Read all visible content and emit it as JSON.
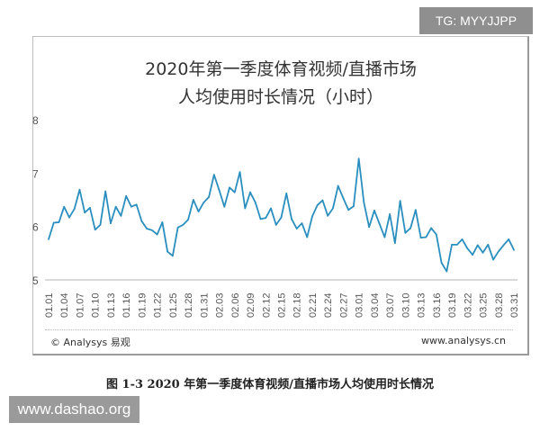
{
  "badge": "TG: MYYJJPP",
  "footer": {
    "left": "© Analysys 易观",
    "right": "www.analysys.cn"
  },
  "caption": "图 1-3 2020 年第一季度体育视频/直播市场人均使用时长情况",
  "watermark_site": "www.dashao.org",
  "colors": {
    "line": "#2a8fbf",
    "axis": "#d9d9d9"
  },
  "chart_data": {
    "type": "line",
    "title_line1": "2020年第一季度体育视频/直播市场",
    "title_line2": "人均使用时长情况（小时）",
    "ylim": [
      5,
      8
    ],
    "yticks": [
      5,
      6,
      7,
      8
    ],
    "grid": false,
    "xtick_labels": [
      "01.01",
      "01.04",
      "01.07",
      "01.10",
      "01.13",
      "01.16",
      "01.19",
      "01.22",
      "01.25",
      "01.28",
      "01.31",
      "02.03",
      "02.06",
      "02.09",
      "02.12",
      "02.15",
      "02.18",
      "02.21",
      "02.24",
      "02.27",
      "03.01",
      "03.04",
      "03.07",
      "03.10",
      "03.13",
      "03.16",
      "03.19",
      "03.22",
      "03.25",
      "03.28",
      "03.31"
    ],
    "x_start": "01.01",
    "x_end": "03.31",
    "values": [
      5.76,
      6.07,
      6.08,
      6.37,
      6.17,
      6.33,
      6.69,
      6.26,
      6.35,
      5.94,
      6.03,
      6.66,
      6.06,
      6.37,
      6.2,
      6.57,
      6.37,
      6.41,
      6.1,
      5.96,
      5.93,
      5.85,
      6.08,
      5.53,
      5.45,
      5.98,
      6.03,
      6.13,
      6.5,
      6.28,
      6.45,
      6.55,
      6.97,
      6.68,
      6.37,
      6.73,
      6.64,
      7.02,
      6.34,
      6.64,
      6.45,
      6.14,
      6.16,
      6.34,
      6.03,
      6.17,
      6.62,
      6.14,
      5.96,
      6.06,
      5.8,
      6.19,
      6.4,
      6.49,
      6.2,
      6.34,
      6.76,
      6.53,
      6.31,
      6.38,
      7.27,
      6.44,
      5.99,
      6.3,
      6.05,
      5.8,
      6.23,
      5.69,
      6.48,
      5.88,
      5.97,
      6.31,
      5.79,
      5.8,
      5.97,
      5.85,
      5.32,
      5.16,
      5.66,
      5.66,
      5.76,
      5.59,
      5.47,
      5.65,
      5.51,
      5.66,
      5.38,
      5.53,
      5.65,
      5.76,
      5.56
    ]
  }
}
